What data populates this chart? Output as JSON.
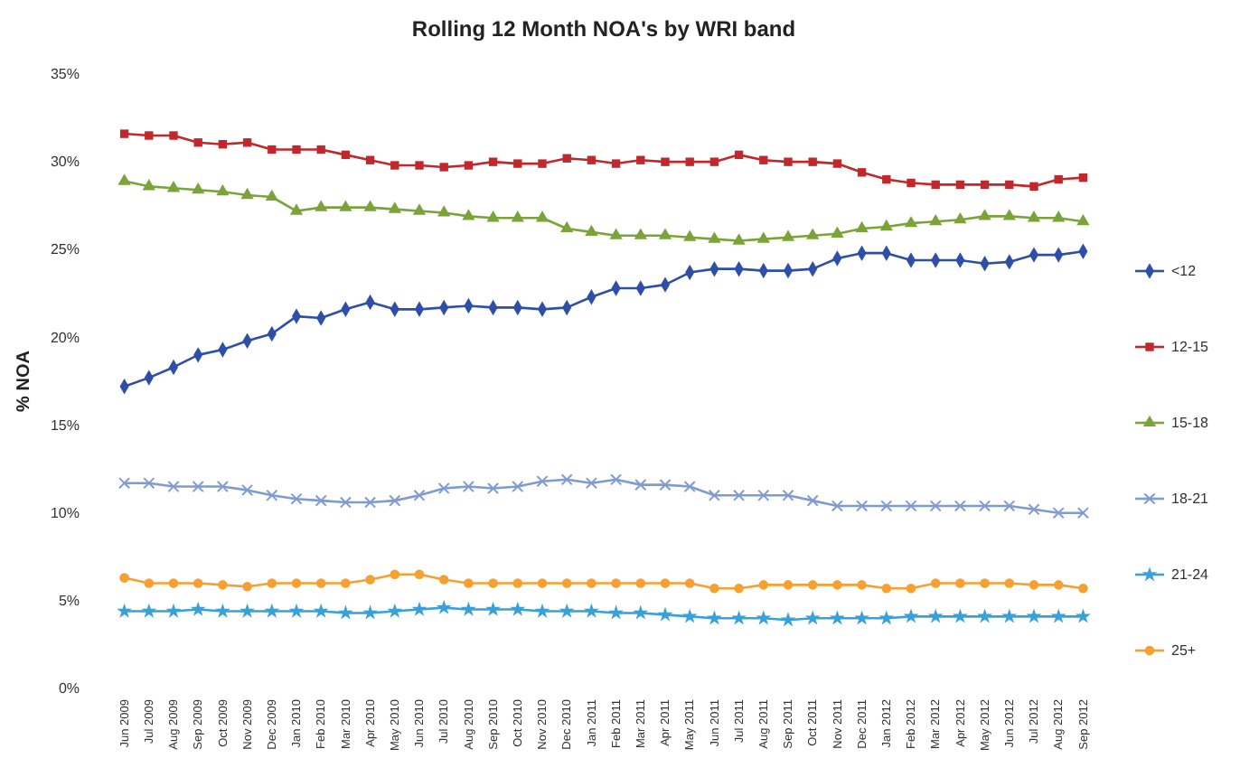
{
  "chart_data": {
    "type": "line",
    "title": "Rolling 12 Month NOA's  by WRI band",
    "ylabel": "% NOA",
    "categories": [
      "Jun 2009",
      "Jul 2009",
      "Aug 2009",
      "Sep 2009",
      "Oct 2009",
      "Nov 2009",
      "Dec 2009",
      "Jan 2010",
      "Feb 2010",
      "Mar 2010",
      "Apr 2010",
      "May 2010",
      "Jun 2010",
      "Jul 2010",
      "Aug 2010",
      "Sep 2010",
      "Oct 2010",
      "Nov 2010",
      "Dec 2010",
      "Jan 2011",
      "Feb 2011",
      "Mar 2011",
      "Apr 2011",
      "May 2011",
      "Jun 2011",
      "Jul 2011",
      "Aug 2011",
      "Sep 2011",
      "Oct 2011",
      "Nov 2011",
      "Dec 2011",
      "Jan 2012",
      "Feb 2012",
      "Mar 2012",
      "Apr 2012",
      "May 2012",
      "Jun 2012",
      "Jul 2012",
      "Aug 2012",
      "Sep 2012"
    ],
    "series": [
      {
        "name": "<12",
        "color": "#2e4fa8",
        "marker": "diamond",
        "values": [
          17.2,
          17.7,
          18.3,
          19.0,
          19.3,
          19.8,
          20.2,
          21.2,
          21.1,
          21.6,
          22.0,
          21.6,
          21.6,
          21.7,
          21.8,
          21.7,
          21.7,
          21.6,
          21.7,
          22.3,
          22.8,
          22.8,
          23.0,
          23.7,
          23.9,
          23.9,
          23.8,
          23.8,
          23.9,
          24.5,
          24.8,
          24.8,
          24.4,
          24.4,
          24.4,
          24.2,
          24.3,
          24.7,
          24.7,
          24.9
        ]
      },
      {
        "name": "12-15",
        "color": "#c0282c",
        "marker": "square",
        "values": [
          31.6,
          31.5,
          31.5,
          31.1,
          31.0,
          31.1,
          30.7,
          30.7,
          30.7,
          30.4,
          30.1,
          29.8,
          29.8,
          29.7,
          29.8,
          30.0,
          29.9,
          29.9,
          30.2,
          30.1,
          29.9,
          30.1,
          30.0,
          30.0,
          30.0,
          30.4,
          30.1,
          30.0,
          30.0,
          29.9,
          29.4,
          29.0,
          28.8,
          28.7,
          28.7,
          28.7,
          28.7,
          28.6,
          29.0,
          29.1
        ]
      },
      {
        "name": "15-18",
        "color": "#7aa33a",
        "marker": "triangle",
        "values": [
          28.9,
          28.6,
          28.5,
          28.4,
          28.3,
          28.1,
          28.0,
          27.2,
          27.4,
          27.4,
          27.4,
          27.3,
          27.2,
          27.1,
          26.9,
          26.8,
          26.8,
          26.8,
          26.2,
          26.0,
          25.8,
          25.8,
          25.8,
          25.7,
          25.6,
          25.5,
          25.6,
          25.7,
          25.8,
          25.9,
          26.2,
          26.3,
          26.5,
          26.6,
          26.7,
          26.9,
          26.9,
          26.8,
          26.8,
          26.6
        ]
      },
      {
        "name": "18-21",
        "color": "#7f9bd0",
        "marker": "cross",
        "values": [
          11.7,
          11.7,
          11.5,
          11.5,
          11.5,
          11.3,
          11.0,
          10.8,
          10.7,
          10.6,
          10.6,
          10.7,
          11.0,
          11.4,
          11.5,
          11.4,
          11.5,
          11.8,
          11.9,
          11.7,
          11.9,
          11.6,
          11.6,
          11.5,
          11.0,
          11.0,
          11.0,
          11.0,
          10.7,
          10.4,
          10.4,
          10.4,
          10.4,
          10.4,
          10.4,
          10.4,
          10.4,
          10.2,
          10.0,
          10.0
        ]
      },
      {
        "name": "21-24",
        "color": "#3aa0d8",
        "marker": "star",
        "values": [
          4.4,
          4.4,
          4.4,
          4.5,
          4.4,
          4.4,
          4.4,
          4.4,
          4.4,
          4.3,
          4.3,
          4.4,
          4.5,
          4.6,
          4.5,
          4.5,
          4.5,
          4.4,
          4.4,
          4.4,
          4.3,
          4.3,
          4.2,
          4.1,
          4.0,
          4.0,
          4.0,
          3.9,
          4.0,
          4.0,
          4.0,
          4.0,
          4.1,
          4.1,
          4.1,
          4.1,
          4.1,
          4.1,
          4.1,
          4.1
        ]
      },
      {
        "name": "25+",
        "color": "#f5a030",
        "marker": "circle",
        "values": [
          6.3,
          6.0,
          6.0,
          6.0,
          5.9,
          5.8,
          6.0,
          6.0,
          6.0,
          6.0,
          6.2,
          6.5,
          6.5,
          6.2,
          6.0,
          6.0,
          6.0,
          6.0,
          6.0,
          6.0,
          6.0,
          6.0,
          6.0,
          6.0,
          5.7,
          5.7,
          5.9,
          5.9,
          5.9,
          5.9,
          5.9,
          5.7,
          5.7,
          6.0,
          6.0,
          6.0,
          6.0,
          5.9,
          5.9,
          5.7
        ]
      }
    ],
    "ylim": [
      0,
      35
    ],
    "yticks": [
      {
        "value": 0,
        "label": "0%"
      },
      {
        "value": 5,
        "label": "5%"
      },
      {
        "value": 10,
        "label": "10%"
      },
      {
        "value": 15,
        "label": "15%"
      },
      {
        "value": 20,
        "label": "20%"
      },
      {
        "value": 25,
        "label": "25%"
      },
      {
        "value": 30,
        "label": "30%"
      },
      {
        "value": 35,
        "label": "35%"
      }
    ],
    "grid": false,
    "legend": "right",
    "line_style": "solid"
  }
}
